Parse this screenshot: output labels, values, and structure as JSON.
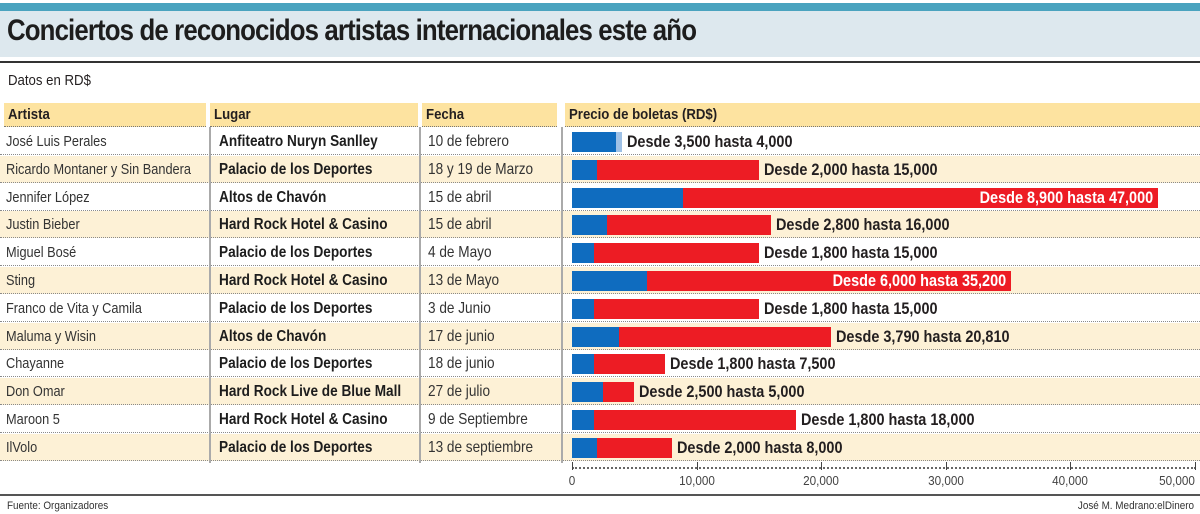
{
  "header": {
    "title": "Conciertos de reconocidos artistas internacionales este año",
    "subtitle": "Datos en RD$"
  },
  "columns": {
    "artist": "Artista",
    "venue": "Lugar",
    "date": "Fecha",
    "price": "Precio de boletas (RD$)"
  },
  "colors": {
    "min_price": "#0f6cbf",
    "max_price": "#ed1c24",
    "header_bg": "#fde3a0",
    "alt_row_bg": "#fdf1d6",
    "banner": "#4aa3bf"
  },
  "chart_data": {
    "type": "bar",
    "orientation": "horizontal",
    "title": "Precio de boletas (RD$)",
    "xlim": [
      0,
      50000
    ],
    "xticks": [
      0,
      10000,
      20000,
      30000,
      40000,
      50000
    ],
    "xtick_labels": [
      "0",
      "10,000",
      "20,000",
      "30,000",
      "40,000",
      "50,000"
    ],
    "categories": [
      "José Luis Perales",
      "Ricardo Montaner y Sin Bandera",
      "Jennifer López",
      "Justin Bieber",
      "Miguel Bosé",
      "Sting",
      "Franco de Vita y Camila",
      "Maluma y Wisin",
      "Chayanne",
      "Don Omar",
      "Maroon 5",
      "IlVolo"
    ],
    "series": [
      {
        "name": "Desde",
        "values": [
          3500,
          2000,
          8900,
          2800,
          1800,
          6000,
          1800,
          3790,
          1800,
          2500,
          1800,
          2000
        ]
      },
      {
        "name": "Hasta",
        "values": [
          4000,
          15000,
          47000,
          16000,
          15000,
          35200,
          15000,
          20810,
          7500,
          5000,
          18000,
          8000
        ]
      }
    ]
  },
  "rows": [
    {
      "artist": "José Luis Perales",
      "venue": "Anfiteatro Nuryn Sanlley",
      "date": "10 de febrero",
      "label": "Desde 3,500 hasta 4,000"
    },
    {
      "artist": "Ricardo Montaner y Sin Bandera",
      "venue": "Palacio de los Deportes",
      "date": "18 y 19 de Marzo",
      "label": "Desde 2,000 hasta 15,000"
    },
    {
      "artist": "Jennifer López",
      "venue": "Altos de Chavón",
      "date": "15 de abril",
      "label": "Desde 8,900 hasta 47,000"
    },
    {
      "artist": "Justin Bieber",
      "venue": "Hard Rock Hotel & Casino",
      "date": "15 de abril",
      "label": "Desde 2,800 hasta 16,000"
    },
    {
      "artist": "Miguel Bosé",
      "venue": "Palacio de los Deportes",
      "date": "4 de Mayo",
      "label": "Desde 1,800 hasta 15,000"
    },
    {
      "artist": "Sting",
      "venue": "Hard Rock Hotel & Casino",
      "date": "13 de Mayo",
      "label": "Desde 6,000 hasta 35,200"
    },
    {
      "artist": "Franco de Vita y Camila",
      "venue": "Palacio de los Deportes",
      "date": "3 de Junio",
      "label": "Desde 1,800 hasta 15,000"
    },
    {
      "artist": "Maluma y Wisin",
      "venue": "Altos de Chavón",
      "date": "17 de junio",
      "label": "Desde 3,790 hasta 20,810"
    },
    {
      "artist": "Chayanne",
      "venue": "Palacio de los Deportes",
      "date": "18 de junio",
      "label": "Desde 1,800 hasta 7,500"
    },
    {
      "artist": "Don Omar",
      "venue": "Hard Rock Live de Blue Mall",
      "date": "27 de julio",
      "label": "Desde 2,500 hasta 5,000"
    },
    {
      "artist": "Maroon 5",
      "venue": "Hard Rock Hotel & Casino",
      "date": "9 de Septiembre",
      "label": "Desde 1,800 hasta 18,000"
    },
    {
      "artist": "IlVolo",
      "venue": "Palacio de los Deportes",
      "date": "13 de septiembre",
      "label": "Desde 2,000 hasta 8,000"
    }
  ],
  "footer": {
    "source": "Fuente: Organizadores",
    "credit": "José M. Medrano:elDinero"
  }
}
